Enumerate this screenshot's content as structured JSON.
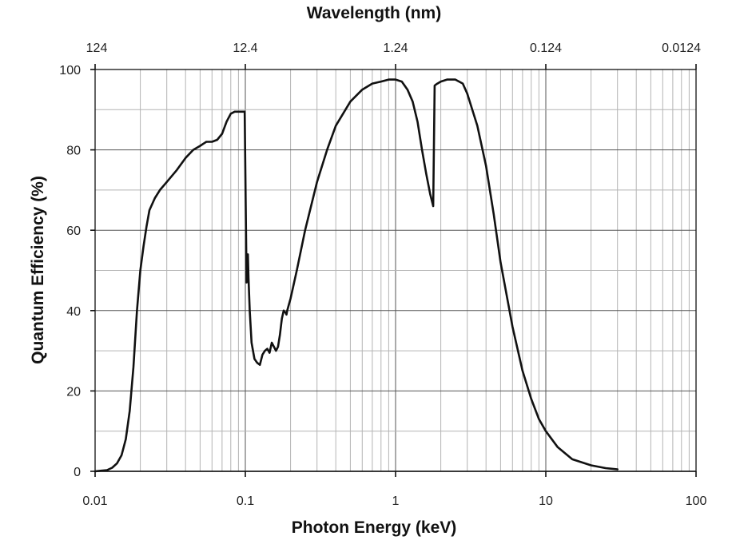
{
  "chart_data": {
    "type": "line",
    "title": "",
    "xlabel": "Photon Energy (keV)",
    "ylabel": "Quantum Efficiency (%)",
    "top_xlabel": "Wavelength (nm)",
    "x_scale": "log",
    "xlim": [
      0.01,
      100
    ],
    "ylim": [
      0,
      100
    ],
    "grid": true,
    "legend": "none",
    "x_ticks": [
      "0.01",
      "0.1",
      "1",
      "10",
      "100"
    ],
    "x_tick_values": [
      0.01,
      0.1,
      1,
      10,
      100
    ],
    "top_ticks": [
      "124",
      "12.4",
      "1.24",
      "0.124",
      "0.0124"
    ],
    "y_ticks": [
      "0",
      "20",
      "40",
      "60",
      "80",
      "100"
    ],
    "y_tick_values": [
      0,
      20,
      40,
      60,
      80,
      100
    ],
    "line_color": "#111111",
    "series": [
      {
        "x": [
          0.01,
          0.012,
          0.013,
          0.014,
          0.015,
          0.016,
          0.017,
          0.018,
          0.019,
          0.02,
          0.021,
          0.022,
          0.023,
          0.025,
          0.027,
          0.03,
          0.035,
          0.04,
          0.045,
          0.05,
          0.055,
          0.06,
          0.065,
          0.07,
          0.075,
          0.08,
          0.085,
          0.09,
          0.095,
          0.099,
          0.1,
          0.101,
          0.102,
          0.103,
          0.104,
          0.105,
          0.107,
          0.11,
          0.115,
          0.12,
          0.125,
          0.13,
          0.135,
          0.14,
          0.145,
          0.15,
          0.155,
          0.16,
          0.165,
          0.17,
          0.175,
          0.18,
          0.185,
          0.188,
          0.19,
          0.2,
          0.22,
          0.25,
          0.3,
          0.35,
          0.4,
          0.5,
          0.6,
          0.7,
          0.8,
          0.9,
          1.0,
          1.1,
          1.2,
          1.3,
          1.4,
          1.5,
          1.6,
          1.7,
          1.78,
          1.82,
          1.85,
          1.9,
          2.0,
          2.2,
          2.5,
          2.8,
          3.0,
          3.5,
          4.0,
          4.5,
          5.0,
          6.0,
          7.0,
          8.0,
          9.0,
          10,
          12,
          15,
          20,
          25,
          30
        ],
        "y": [
          0,
          0.3,
          0.9,
          2,
          4,
          8,
          15,
          26,
          40,
          50,
          56,
          61,
          65,
          68,
          70,
          72,
          75,
          78,
          80,
          81,
          82,
          82,
          82.5,
          84,
          87,
          89,
          89.5,
          89.5,
          89.5,
          89.5,
          75,
          60,
          47,
          54,
          54,
          48,
          40,
          32,
          28,
          27,
          26.5,
          29,
          30,
          30.5,
          29.5,
          32,
          31,
          30,
          31,
          34,
          38,
          40,
          39.5,
          39,
          40,
          43,
          50,
          60,
          72,
          80,
          86,
          92,
          95,
          96.5,
          97,
          97.5,
          97.5,
          97,
          95,
          92,
          87,
          80,
          74,
          69,
          66,
          96,
          96.2,
          96.5,
          97,
          97.5,
          97.5,
          96.5,
          94,
          86,
          76,
          64,
          52,
          36,
          25,
          18,
          13,
          10,
          6,
          3,
          1.5,
          0.8,
          0.5
        ]
      }
    ]
  }
}
